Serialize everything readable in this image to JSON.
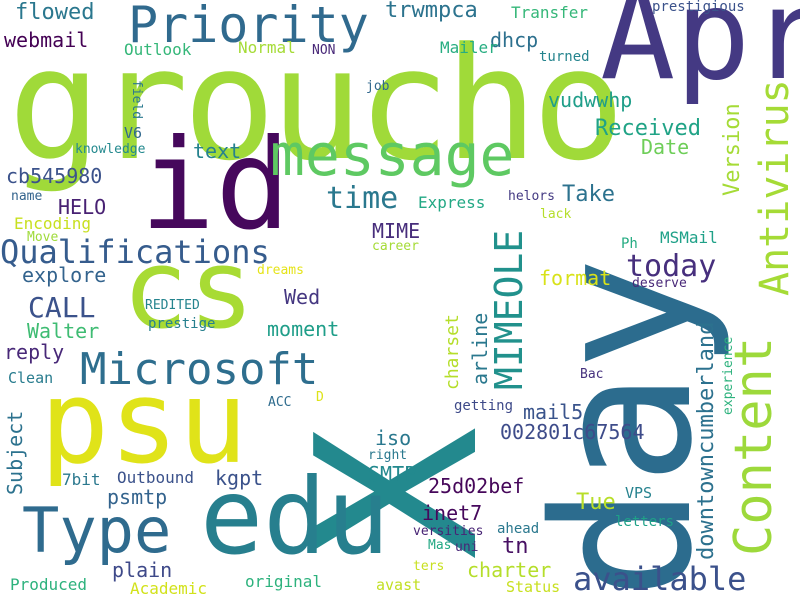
{
  "words": [
    {
      "text": "X",
      "color": "#23898e"
    },
    {
      "text": "day",
      "color": "#2c6c8e"
    },
    {
      "text": "groucho",
      "color": "#a0da39"
    },
    {
      "text": "Apr",
      "color": "#443983"
    },
    {
      "text": "cs",
      "color": "#a8db34"
    },
    {
      "text": "id",
      "color": "#46085c"
    },
    {
      "text": "psu",
      "color": "#e0e319"
    },
    {
      "text": "edu",
      "color": "#277f8e"
    },
    {
      "text": "message",
      "color": "#5ec962"
    },
    {
      "text": "Priority",
      "color": "#306a8e"
    },
    {
      "text": "Content",
      "color": "#9dd93b"
    },
    {
      "text": "Type",
      "color": "#2f6b8e"
    },
    {
      "text": "Microsoft",
      "color": "#2e6e8e"
    },
    {
      "text": "Antivirus",
      "color": "#a5db36"
    },
    {
      "text": "Qualifications",
      "color": "#365c8d"
    },
    {
      "text": "MIMEOLE",
      "color": "#21918c"
    },
    {
      "text": "available",
      "color": "#3b518b"
    },
    {
      "text": "today",
      "color": "#472f7d"
    },
    {
      "text": "time",
      "color": "#2a788e"
    },
    {
      "text": "CALL",
      "color": "#3b528b"
    },
    {
      "text": "Received",
      "color": "#20a386"
    },
    {
      "text": "Version",
      "color": "#a5db36"
    },
    {
      "text": "downtowncumberland",
      "color": "#2c718e"
    },
    {
      "text": "flowed",
      "color": "#2a778e"
    },
    {
      "text": "trwmpca",
      "color": "#2c738e"
    },
    {
      "text": "webmail",
      "color": "#440154"
    },
    {
      "text": "dhcp",
      "color": "#2d708e"
    },
    {
      "text": "Transfer",
      "color": "#35b779"
    },
    {
      "text": "prestigious",
      "color": "#3b528b"
    },
    {
      "text": "Mailer",
      "color": "#27ad81"
    },
    {
      "text": "NON",
      "color": "#482878"
    },
    {
      "text": "turned",
      "color": "#25848e"
    },
    {
      "text": "Outlook",
      "color": "#35b779"
    },
    {
      "text": "Normal",
      "color": "#a5db36"
    },
    {
      "text": "vudwwhp",
      "color": "#1f9e89"
    },
    {
      "text": "job",
      "color": "#31688e"
    },
    {
      "text": "field",
      "color": "#2a788e"
    },
    {
      "text": "knowledge",
      "color": "#23898e"
    },
    {
      "text": "V6",
      "color": "#31688e"
    },
    {
      "text": "text",
      "color": "#26828e"
    },
    {
      "text": "Date",
      "color": "#6ece58"
    },
    {
      "text": "cb545980",
      "color": "#3b528b"
    },
    {
      "text": "Take",
      "color": "#2c728e"
    },
    {
      "text": "helors",
      "color": "#443a83"
    },
    {
      "text": "HELO",
      "color": "#482173"
    },
    {
      "text": "name",
      "color": "#33638d"
    },
    {
      "text": "Express",
      "color": "#22a884"
    },
    {
      "text": "lack",
      "color": "#b5de2b"
    },
    {
      "text": "Encoding",
      "color": "#c8e020"
    },
    {
      "text": "MIME",
      "color": "#472d7b"
    },
    {
      "text": "MSMail",
      "color": "#1fa188"
    },
    {
      "text": "Move",
      "color": "#9fda3a"
    },
    {
      "text": "career",
      "color": "#a5db36"
    },
    {
      "text": "Ph",
      "color": "#25ab82"
    },
    {
      "text": "explore",
      "color": "#33638d"
    },
    {
      "text": "dreams",
      "color": "#e5e419"
    },
    {
      "text": "format",
      "color": "#d8e219"
    },
    {
      "text": "deserve",
      "color": "#482878"
    },
    {
      "text": "Wed",
      "color": "#453781"
    },
    {
      "text": "REDITED",
      "color": "#25848e"
    },
    {
      "text": "charset",
      "color": "#b5de2b"
    },
    {
      "text": "arline",
      "color": "#2a788e"
    },
    {
      "text": "prestige",
      "color": "#27808e"
    },
    {
      "text": "moment",
      "color": "#1f9e89"
    },
    {
      "text": "Walter",
      "color": "#3fbc73"
    },
    {
      "text": "reply",
      "color": "#482878"
    },
    {
      "text": "experience",
      "color": "#2db27d"
    },
    {
      "text": "Clean",
      "color": "#287c8e"
    },
    {
      "text": "Bac",
      "color": "#46327e"
    },
    {
      "text": "Subject",
      "color": "#2c728e"
    },
    {
      "text": "ACC",
      "color": "#2f6c8e"
    },
    {
      "text": "D",
      "color": "#dde318"
    },
    {
      "text": "getting",
      "color": "#3e4a89"
    },
    {
      "text": "mail5",
      "color": "#3a548c"
    },
    {
      "text": "iso",
      "color": "#2a788e"
    },
    {
      "text": "002801c67564",
      "color": "#3e4c8a"
    },
    {
      "text": "right",
      "color": "#2a788e"
    },
    {
      "text": "SMTP",
      "color": "#23898e"
    },
    {
      "text": "25d02bef",
      "color": "#46075a"
    },
    {
      "text": "Tue",
      "color": "#b8de29"
    },
    {
      "text": "Outbound",
      "color": "#3b528b"
    },
    {
      "text": "7bit",
      "color": "#2a788e"
    },
    {
      "text": "kgpt",
      "color": "#3b528b"
    },
    {
      "text": "psmtp",
      "color": "#33638d"
    },
    {
      "text": "VPS",
      "color": "#26828e"
    },
    {
      "text": "inet7",
      "color": "#46085c"
    },
    {
      "text": "versities",
      "color": "#482475"
    },
    {
      "text": "ahead",
      "color": "#2a788e"
    },
    {
      "text": "letters",
      "color": "#1fa188"
    },
    {
      "text": "uni",
      "color": "#482878"
    },
    {
      "text": "Mas",
      "color": "#22a884"
    },
    {
      "text": "tn",
      "color": "#471063"
    },
    {
      "text": "plain",
      "color": "#3e4989"
    },
    {
      "text": "charter",
      "color": "#b5de2b"
    },
    {
      "text": "ters",
      "color": "#c8e020"
    },
    {
      "text": "Produced",
      "color": "#2db27d"
    },
    {
      "text": "Academic",
      "color": "#d2e21b"
    },
    {
      "text": "original",
      "color": "#2db27d"
    },
    {
      "text": "avast",
      "color": "#c2df23"
    },
    {
      "text": "Status",
      "color": "#c8e020"
    }
  ]
}
